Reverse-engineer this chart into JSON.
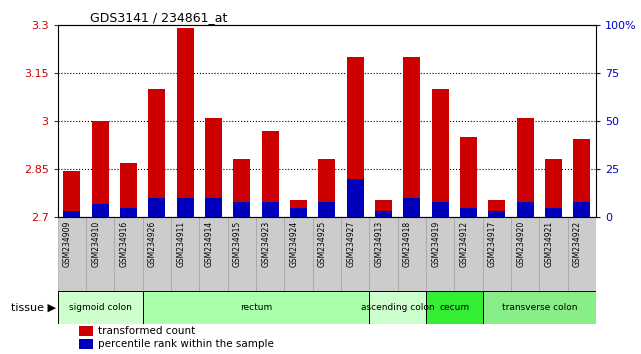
{
  "title": "GDS3141 / 234861_at",
  "samples": [
    "GSM234909",
    "GSM234910",
    "GSM234916",
    "GSM234926",
    "GSM234911",
    "GSM234914",
    "GSM234915",
    "GSM234923",
    "GSM234924",
    "GSM234925",
    "GSM234927",
    "GSM234913",
    "GSM234918",
    "GSM234919",
    "GSM234912",
    "GSM234917",
    "GSM234920",
    "GSM234921",
    "GSM234922"
  ],
  "transformed_count": [
    2.845,
    3.0,
    2.87,
    3.1,
    3.29,
    3.01,
    2.88,
    2.97,
    2.755,
    2.88,
    3.2,
    2.755,
    3.2,
    3.1,
    2.95,
    2.755,
    3.01,
    2.88,
    2.945
  ],
  "percentile_rank": [
    3,
    7,
    5,
    10,
    10,
    10,
    8,
    8,
    5,
    8,
    20,
    3,
    10,
    8,
    5,
    3,
    8,
    5,
    8
  ],
  "ymin": 2.7,
  "ymax": 3.3,
  "yticks": [
    2.7,
    2.85,
    3.0,
    3.15,
    3.3
  ],
  "ytick_labels": [
    "2.7",
    "2.85",
    "3",
    "3.15",
    "3.3"
  ],
  "right_yticks": [
    0,
    25,
    50,
    75,
    100
  ],
  "right_ytick_labels": [
    "0",
    "25",
    "50",
    "75",
    "100%"
  ],
  "bar_color": "#cc0000",
  "percentile_color": "#0000bb",
  "tissue_groups": [
    {
      "label": "sigmoid colon",
      "start": 0,
      "end": 3,
      "color": "#ccffcc"
    },
    {
      "label": "rectum",
      "start": 3,
      "end": 11,
      "color": "#aaffaa"
    },
    {
      "label": "ascending colon",
      "start": 11,
      "end": 13,
      "color": "#ccffcc"
    },
    {
      "label": "cecum",
      "start": 13,
      "end": 15,
      "color": "#33ee33"
    },
    {
      "label": "transverse colon",
      "start": 15,
      "end": 19,
      "color": "#88ee88"
    }
  ],
  "grid_color": "#000000",
  "tick_bg_color": "#cccccc",
  "bar_width": 0.6
}
